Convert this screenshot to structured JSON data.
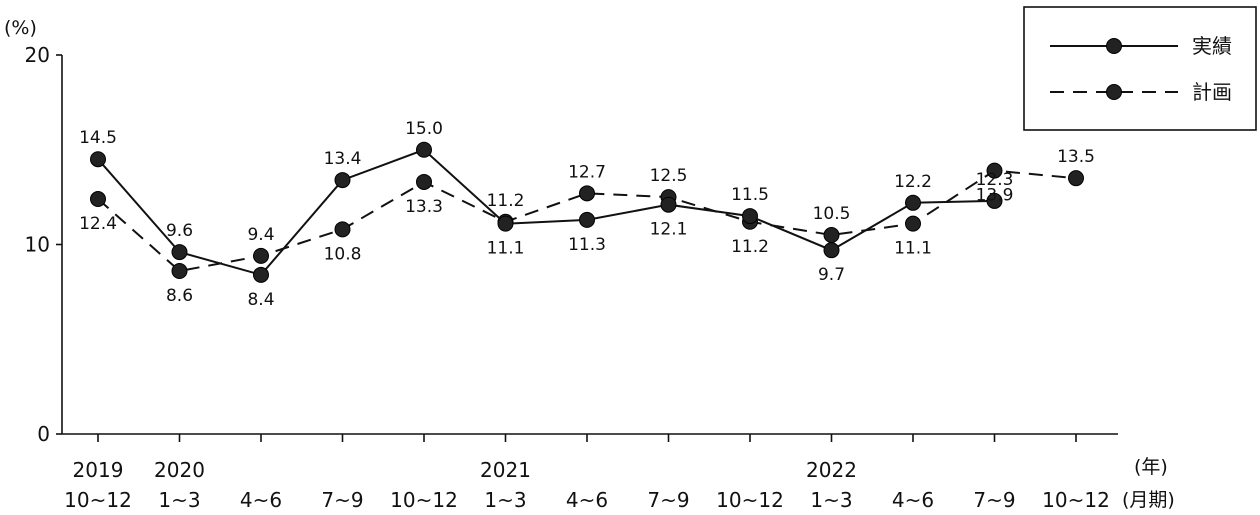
{
  "chart_data": {
    "type": "line",
    "y_unit": "(%)",
    "x_unit_year": "(年)",
    "x_unit_period": "(月期)",
    "ylim": [
      0,
      20
    ],
    "y_ticks": [
      "0",
      "10",
      "20"
    ],
    "categories": [
      {
        "year": "2019",
        "period": "10~12"
      },
      {
        "year": "2020",
        "period": "1~3"
      },
      {
        "year": "",
        "period": "4~6"
      },
      {
        "year": "",
        "period": "7~9"
      },
      {
        "year": "",
        "period": "10~12"
      },
      {
        "year": "2021",
        "period": "1~3"
      },
      {
        "year": "",
        "period": "4~6"
      },
      {
        "year": "",
        "period": "7~9"
      },
      {
        "year": "",
        "period": "10~12"
      },
      {
        "year": "2022",
        "period": "1~3"
      },
      {
        "year": "",
        "period": "4~6"
      },
      {
        "year": "",
        "period": "7~9"
      },
      {
        "year": "",
        "period": "10~12"
      }
    ],
    "series": [
      {
        "name": "実績",
        "style": "solid",
        "values": [
          14.5,
          9.6,
          8.4,
          13.4,
          15.0,
          11.1,
          11.3,
          12.1,
          11.5,
          9.7,
          12.2,
          12.3,
          null
        ],
        "labels": [
          "14.5",
          "9.6",
          "8.4",
          "13.4",
          "15.0",
          "11.1",
          "11.3",
          "12.1",
          "11.5",
          "9.7",
          "12.2",
          "12.3",
          ""
        ]
      },
      {
        "name": "計画",
        "style": "dashed",
        "values": [
          12.4,
          8.6,
          9.4,
          10.8,
          13.3,
          11.2,
          12.7,
          12.5,
          11.2,
          10.5,
          11.1,
          13.9,
          13.5
        ],
        "labels": [
          "12.4",
          "8.6",
          "9.4",
          "10.8",
          "13.3",
          "11.2",
          "12.7",
          "12.5",
          "11.2",
          "10.5",
          "11.1",
          "13.9",
          "13.5"
        ]
      }
    ],
    "legend_position": "top-right",
    "grid": false
  }
}
